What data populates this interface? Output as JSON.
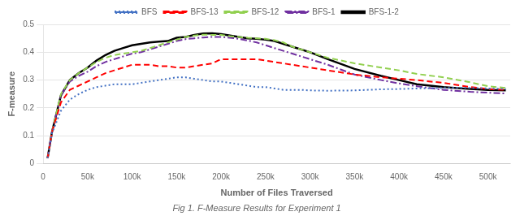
{
  "chart_data": {
    "type": "line",
    "caption": "Fig 1. F-Measure Results for Experiment 1",
    "xlabel": "Number of Files Traversed",
    "ylabel": "F-measure",
    "xlim": [
      0,
      525000
    ],
    "ylim": [
      0,
      0.5
    ],
    "xticks": [
      0,
      {
        "value": 50000,
        "label": "50k"
      },
      {
        "value": 100000,
        "label": "100k"
      },
      {
        "value": 150000,
        "label": "150k"
      },
      {
        "value": 200000,
        "label": "200k"
      },
      {
        "value": 250000,
        "label": "250k"
      },
      {
        "value": 300000,
        "label": "300k"
      },
      {
        "value": 350000,
        "label": "350k"
      },
      {
        "value": 400000,
        "label": "400k"
      },
      {
        "value": 450000,
        "label": "450k"
      },
      {
        "value": 500000,
        "label": "500k"
      }
    ],
    "yticks": [
      0,
      0.1,
      0.2,
      0.3,
      0.4,
      0.5
    ],
    "grid": "y",
    "legend": "top",
    "series": [
      {
        "name": "BFS",
        "color": "#4472C4",
        "line_style": "dotted",
        "x": [
          5000,
          10000,
          20000,
          30000,
          40000,
          50000,
          60000,
          70000,
          80000,
          90000,
          100000,
          110000,
          120000,
          130000,
          140000,
          150000,
          160000,
          170000,
          180000,
          190000,
          200000,
          210000,
          220000,
          230000,
          240000,
          250000,
          260000,
          270000,
          280000,
          290000,
          300000,
          320000,
          350000,
          380000,
          400000,
          420000,
          450000,
          470000,
          500000,
          520000
        ],
        "values": [
          0.02,
          0.11,
          0.19,
          0.23,
          0.25,
          0.265,
          0.275,
          0.28,
          0.285,
          0.285,
          0.285,
          0.29,
          0.295,
          0.3,
          0.305,
          0.31,
          0.31,
          0.305,
          0.3,
          0.295,
          0.295,
          0.29,
          0.285,
          0.28,
          0.275,
          0.275,
          0.27,
          0.265,
          0.265,
          0.265,
          0.263,
          0.262,
          0.263,
          0.267,
          0.268,
          0.27,
          0.272,
          0.273,
          0.27,
          0.268
        ]
      },
      {
        "name": "BFS-13",
        "color": "#FF0000",
        "line_style": "dashed",
        "x": [
          5000,
          10000,
          20000,
          30000,
          40000,
          50000,
          60000,
          70000,
          80000,
          90000,
          100000,
          110000,
          120000,
          130000,
          140000,
          150000,
          160000,
          170000,
          180000,
          190000,
          200000,
          210000,
          220000,
          230000,
          240000,
          250000,
          260000,
          270000,
          280000,
          300000,
          320000,
          350000,
          380000,
          400000,
          420000,
          450000,
          480000,
          500000,
          520000
        ],
        "values": [
          0.02,
          0.115,
          0.22,
          0.265,
          0.28,
          0.295,
          0.31,
          0.325,
          0.335,
          0.345,
          0.355,
          0.355,
          0.355,
          0.35,
          0.35,
          0.345,
          0.345,
          0.35,
          0.355,
          0.36,
          0.375,
          0.375,
          0.375,
          0.375,
          0.375,
          0.37,
          0.365,
          0.36,
          0.355,
          0.345,
          0.335,
          0.32,
          0.31,
          0.305,
          0.3,
          0.29,
          0.275,
          0.268,
          0.265
        ]
      },
      {
        "name": "BFS-12",
        "color": "#92D050",
        "line_style": "dashed",
        "x": [
          5000,
          10000,
          20000,
          30000,
          40000,
          50000,
          60000,
          70000,
          80000,
          90000,
          100000,
          110000,
          120000,
          130000,
          140000,
          150000,
          160000,
          170000,
          180000,
          190000,
          200000,
          210000,
          220000,
          230000,
          240000,
          250000,
          260000,
          270000,
          280000,
          300000,
          320000,
          350000,
          380000,
          400000,
          420000,
          450000,
          480000,
          500000,
          520000
        ],
        "values": [
          0.02,
          0.115,
          0.25,
          0.3,
          0.325,
          0.345,
          0.365,
          0.38,
          0.39,
          0.395,
          0.4,
          0.405,
          0.415,
          0.425,
          0.435,
          0.445,
          0.455,
          0.46,
          0.463,
          0.462,
          0.462,
          0.458,
          0.455,
          0.452,
          0.45,
          0.448,
          0.443,
          0.435,
          0.42,
          0.4,
          0.38,
          0.36,
          0.345,
          0.335,
          0.322,
          0.31,
          0.292,
          0.278,
          0.272
        ]
      },
      {
        "name": "BFS-1",
        "color": "#7030A0",
        "line_style": "dashdot",
        "x": [
          5000,
          10000,
          20000,
          30000,
          40000,
          50000,
          60000,
          70000,
          80000,
          90000,
          100000,
          110000,
          120000,
          130000,
          140000,
          150000,
          160000,
          170000,
          180000,
          190000,
          200000,
          210000,
          220000,
          230000,
          240000,
          250000,
          260000,
          270000,
          280000,
          300000,
          320000,
          350000,
          380000,
          400000,
          420000,
          450000,
          480000,
          500000,
          520000
        ],
        "values": [
          0.02,
          0.115,
          0.245,
          0.295,
          0.315,
          0.33,
          0.35,
          0.365,
          0.375,
          0.385,
          0.395,
          0.4,
          0.41,
          0.42,
          0.43,
          0.44,
          0.447,
          0.45,
          0.453,
          0.455,
          0.455,
          0.452,
          0.448,
          0.442,
          0.435,
          0.425,
          0.415,
          0.405,
          0.395,
          0.375,
          0.355,
          0.32,
          0.3,
          0.288,
          0.278,
          0.265,
          0.258,
          0.255,
          0.252
        ]
      },
      {
        "name": "BFS-1-2",
        "color": "#000000",
        "line_style": "solid",
        "x": [
          5000,
          10000,
          20000,
          30000,
          40000,
          50000,
          60000,
          70000,
          80000,
          90000,
          100000,
          110000,
          120000,
          130000,
          140000,
          150000,
          160000,
          170000,
          180000,
          190000,
          200000,
          210000,
          220000,
          230000,
          240000,
          250000,
          260000,
          270000,
          280000,
          300000,
          320000,
          350000,
          380000,
          400000,
          420000,
          450000,
          480000,
          500000,
          520000
        ],
        "values": [
          0.02,
          0.115,
          0.245,
          0.3,
          0.325,
          0.345,
          0.37,
          0.39,
          0.405,
          0.415,
          0.425,
          0.43,
          0.435,
          0.438,
          0.44,
          0.452,
          0.455,
          0.462,
          0.467,
          0.468,
          0.465,
          0.46,
          0.455,
          0.45,
          0.448,
          0.445,
          0.44,
          0.43,
          0.42,
          0.4,
          0.375,
          0.34,
          0.315,
          0.3,
          0.285,
          0.275,
          0.268,
          0.265,
          0.263
        ]
      }
    ]
  }
}
